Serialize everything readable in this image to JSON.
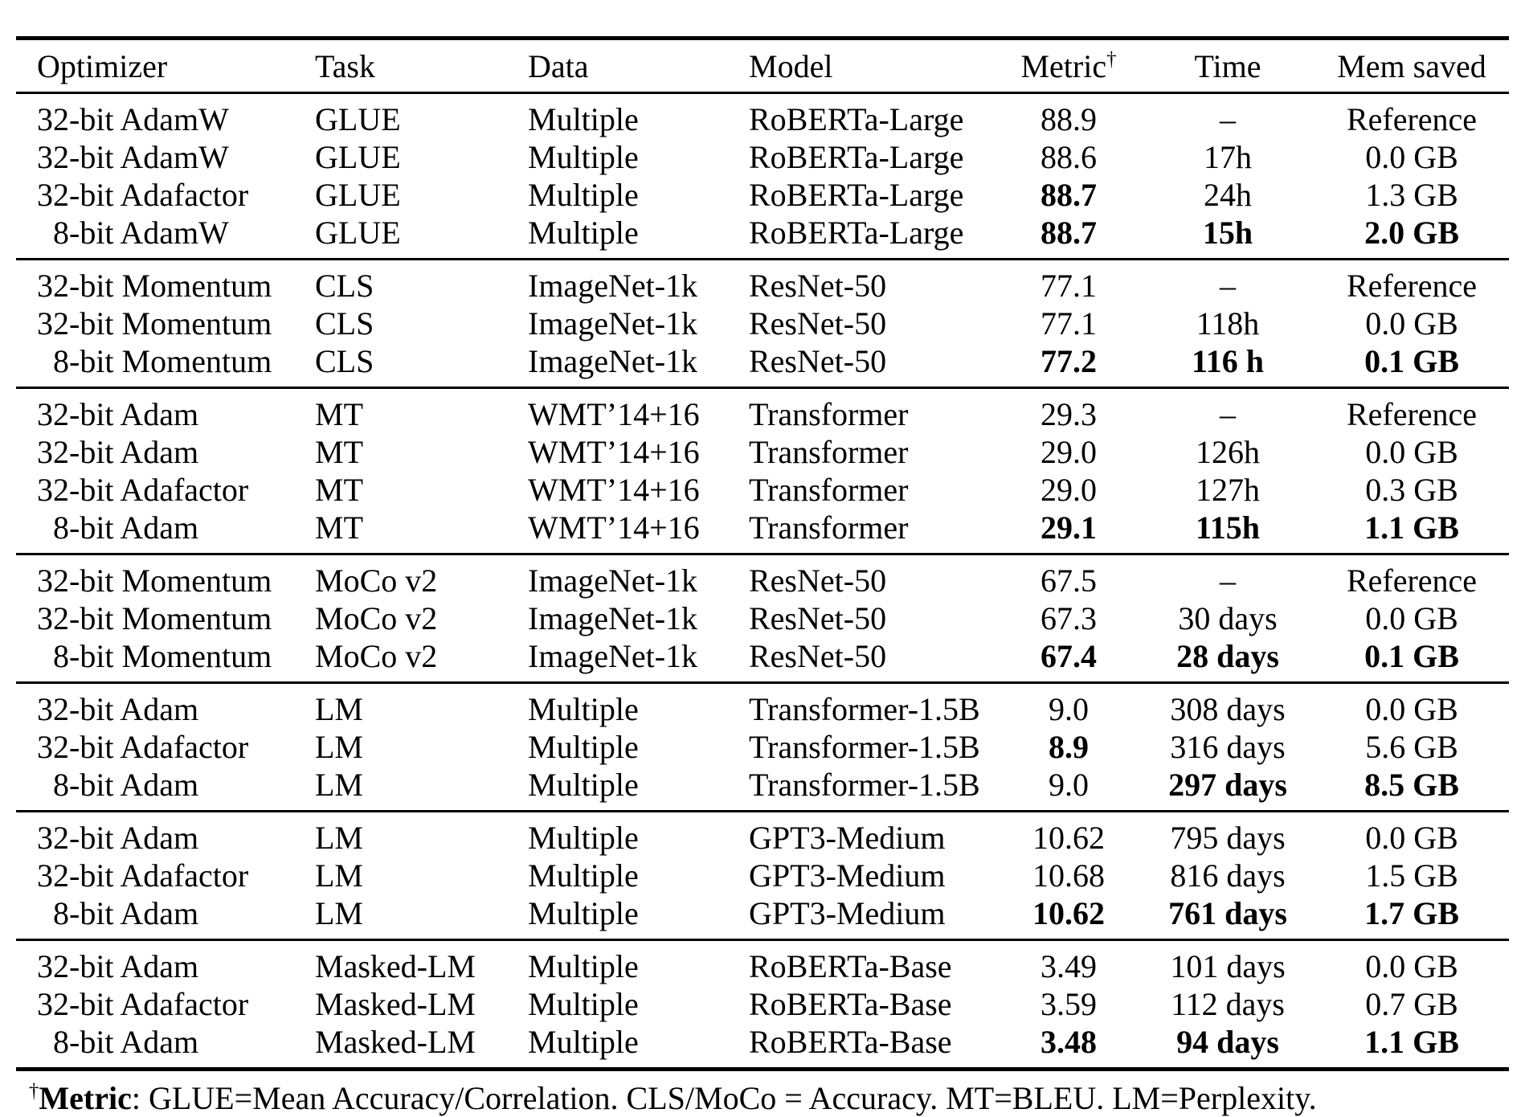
{
  "table": {
    "dagger": "†",
    "columns": [
      "Optimizer",
      "Task",
      "Data",
      "Model",
      "Metric",
      "Time",
      "Mem saved"
    ],
    "groups": [
      {
        "rows": [
          {
            "optimizer": "32-bit AdamW",
            "indent": false,
            "task": "GLUE",
            "data": "Multiple",
            "model": "RoBERTa-Large",
            "metric": "88.9",
            "metric_bold": false,
            "time": "–",
            "time_bold": false,
            "mem": "Reference",
            "mem_bold": false
          },
          {
            "optimizer": "32-bit AdamW",
            "indent": false,
            "task": "GLUE",
            "data": "Multiple",
            "model": "RoBERTa-Large",
            "metric": "88.6",
            "metric_bold": false,
            "time": "17h",
            "time_bold": false,
            "mem": "0.0 GB",
            "mem_bold": false
          },
          {
            "optimizer": "32-bit Adafactor",
            "indent": false,
            "task": "GLUE",
            "data": "Multiple",
            "model": "RoBERTa-Large",
            "metric": "88.7",
            "metric_bold": true,
            "time": "24h",
            "time_bold": false,
            "mem": "1.3 GB",
            "mem_bold": false
          },
          {
            "optimizer": "8-bit AdamW",
            "indent": true,
            "task": "GLUE",
            "data": "Multiple",
            "model": "RoBERTa-Large",
            "metric": "88.7",
            "metric_bold": true,
            "time": "15h",
            "time_bold": true,
            "mem": "2.0 GB",
            "mem_bold": true
          }
        ]
      },
      {
        "rows": [
          {
            "optimizer": "32-bit Momentum",
            "indent": false,
            "task": "CLS",
            "data": "ImageNet-1k",
            "model": "ResNet-50",
            "metric": "77.1",
            "metric_bold": false,
            "time": "–",
            "time_bold": false,
            "mem": "Reference",
            "mem_bold": false
          },
          {
            "optimizer": "32-bit Momentum",
            "indent": false,
            "task": "CLS",
            "data": "ImageNet-1k",
            "model": "ResNet-50",
            "metric": "77.1",
            "metric_bold": false,
            "time": "118h",
            "time_bold": false,
            "mem": "0.0 GB",
            "mem_bold": false
          },
          {
            "optimizer": "8-bit Momentum",
            "indent": true,
            "task": "CLS",
            "data": "ImageNet-1k",
            "model": "ResNet-50",
            "metric": "77.2",
            "metric_bold": true,
            "time": "116 h",
            "time_bold": true,
            "mem": "0.1 GB",
            "mem_bold": true
          }
        ]
      },
      {
        "rows": [
          {
            "optimizer": "32-bit Adam",
            "indent": false,
            "task": "MT",
            "data": "WMT’14+16",
            "model": "Transformer",
            "metric": "29.3",
            "metric_bold": false,
            "time": "–",
            "time_bold": false,
            "mem": "Reference",
            "mem_bold": false
          },
          {
            "optimizer": "32-bit Adam",
            "indent": false,
            "task": "MT",
            "data": "WMT’14+16",
            "model": "Transformer",
            "metric": "29.0",
            "metric_bold": false,
            "time": "126h",
            "time_bold": false,
            "mem": "0.0 GB",
            "mem_bold": false
          },
          {
            "optimizer": "32-bit Adafactor",
            "indent": false,
            "task": "MT",
            "data": "WMT’14+16",
            "model": "Transformer",
            "metric": "29.0",
            "metric_bold": false,
            "time": "127h",
            "time_bold": false,
            "mem": "0.3 GB",
            "mem_bold": false
          },
          {
            "optimizer": "8-bit Adam",
            "indent": true,
            "task": "MT",
            "data": "WMT’14+16",
            "model": "Transformer",
            "metric": "29.1",
            "metric_bold": true,
            "time": "115h",
            "time_bold": true,
            "mem": "1.1 GB",
            "mem_bold": true
          }
        ]
      },
      {
        "rows": [
          {
            "optimizer": "32-bit Momentum",
            "indent": false,
            "task": "MoCo v2",
            "data": "ImageNet-1k",
            "model": "ResNet-50",
            "metric": "67.5",
            "metric_bold": false,
            "time": "–",
            "time_bold": false,
            "mem": "Reference",
            "mem_bold": false
          },
          {
            "optimizer": "32-bit Momentum",
            "indent": false,
            "task": "MoCo v2",
            "data": "ImageNet-1k",
            "model": "ResNet-50",
            "metric": "67.3",
            "metric_bold": false,
            "time": "30 days",
            "time_bold": false,
            "mem": "0.0 GB",
            "mem_bold": false
          },
          {
            "optimizer": "8-bit Momentum",
            "indent": true,
            "task": "MoCo v2",
            "data": "ImageNet-1k",
            "model": "ResNet-50",
            "metric": "67.4",
            "metric_bold": true,
            "time": "28 days",
            "time_bold": true,
            "mem": "0.1 GB",
            "mem_bold": true
          }
        ]
      },
      {
        "rows": [
          {
            "optimizer": "32-bit Adam",
            "indent": false,
            "task": "LM",
            "data": "Multiple",
            "model": "Transformer-1.5B",
            "metric": "9.0",
            "metric_bold": false,
            "time": "308 days",
            "time_bold": false,
            "mem": "0.0 GB",
            "mem_bold": false
          },
          {
            "optimizer": "32-bit Adafactor",
            "indent": false,
            "task": "LM",
            "data": "Multiple",
            "model": "Transformer-1.5B",
            "metric": "8.9",
            "metric_bold": true,
            "time": "316 days",
            "time_bold": false,
            "mem": "5.6 GB",
            "mem_bold": false
          },
          {
            "optimizer": "8-bit Adam",
            "indent": true,
            "task": "LM",
            "data": "Multiple",
            "model": "Transformer-1.5B",
            "metric": "9.0",
            "metric_bold": false,
            "time": "297 days",
            "time_bold": true,
            "mem": "8.5 GB",
            "mem_bold": true
          }
        ]
      },
      {
        "rows": [
          {
            "optimizer": "32-bit Adam",
            "indent": false,
            "task": "LM",
            "data": "Multiple",
            "model": "GPT3-Medium",
            "metric": "10.62",
            "metric_bold": false,
            "time": "795 days",
            "time_bold": false,
            "mem": "0.0 GB",
            "mem_bold": false
          },
          {
            "optimizer": "32-bit Adafactor",
            "indent": false,
            "task": "LM",
            "data": "Multiple",
            "model": "GPT3-Medium",
            "metric": "10.68",
            "metric_bold": false,
            "time": "816 days",
            "time_bold": false,
            "mem": "1.5 GB",
            "mem_bold": false
          },
          {
            "optimizer": "8-bit Adam",
            "indent": true,
            "task": "LM",
            "data": "Multiple",
            "model": "GPT3-Medium",
            "metric": "10.62",
            "metric_bold": true,
            "time": "761 days",
            "time_bold": true,
            "mem": "1.7 GB",
            "mem_bold": true
          }
        ]
      },
      {
        "rows": [
          {
            "optimizer": "32-bit Adam",
            "indent": false,
            "task": "Masked-LM",
            "data": "Multiple",
            "model": "RoBERTa-Base",
            "metric": "3.49",
            "metric_bold": false,
            "time": "101 days",
            "time_bold": false,
            "mem": "0.0 GB",
            "mem_bold": false
          },
          {
            "optimizer": "32-bit Adafactor",
            "indent": false,
            "task": "Masked-LM",
            "data": "Multiple",
            "model": "RoBERTa-Base",
            "metric": "3.59",
            "metric_bold": false,
            "time": "112 days",
            "time_bold": false,
            "mem": "0.7 GB",
            "mem_bold": false
          },
          {
            "optimizer": "8-bit Adam",
            "indent": true,
            "task": "Masked-LM",
            "data": "Multiple",
            "model": "RoBERTa-Base",
            "metric": "3.48",
            "metric_bold": true,
            "time": "94 days",
            "time_bold": true,
            "mem": "1.1 GB",
            "mem_bold": true
          }
        ]
      }
    ]
  },
  "footnote": {
    "dagger": "†",
    "label": "Metric",
    "text": ": GLUE=Mean Accuracy/Correlation. CLS/MoCo = Accuracy. MT=BLEU. LM=Perplexity."
  }
}
